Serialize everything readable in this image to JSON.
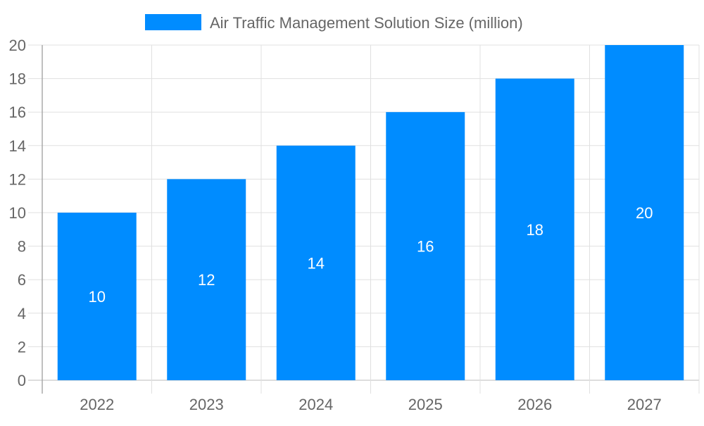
{
  "chart_data": {
    "type": "bar",
    "categories": [
      "2022",
      "2023",
      "2024",
      "2025",
      "2026",
      "2027"
    ],
    "series": [
      {
        "name": "Air Traffic Management Solution Size (million)",
        "values": [
          10,
          12,
          14,
          16,
          18,
          20
        ],
        "color": "#008cff"
      }
    ],
    "data_labels": [
      "10",
      "12",
      "14",
      "16",
      "18",
      "20"
    ],
    "ylim": [
      0,
      20
    ],
    "yticks": [
      "0",
      "2",
      "4",
      "6",
      "8",
      "10",
      "12",
      "14",
      "16",
      "18",
      "20"
    ],
    "grid": true,
    "legend_position": "top",
    "xlabel": "",
    "ylabel": ""
  }
}
